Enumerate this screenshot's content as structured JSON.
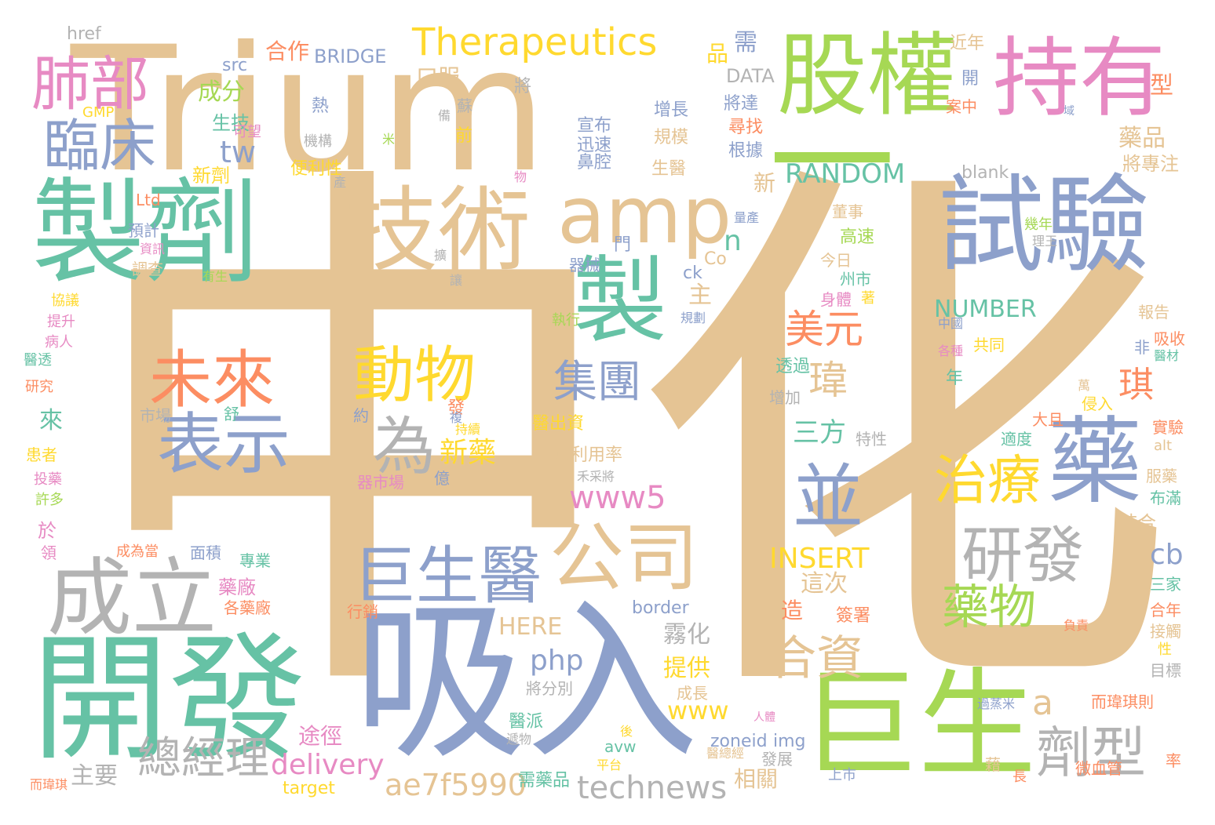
{
  "palette": {
    "tan": "#e5c494",
    "green": "#66c2a5",
    "lime": "#a6d854",
    "blue": "#8da0cb",
    "pink": "#e78ac3",
    "orange": "#fc8d62",
    "yellow": "#ffd92f",
    "gray": "#b3b3b3"
  },
  "words": [
    {
      "text": "中化",
      "color": "tan"
    },
    {
      "text": "Trium",
      "color": "tan"
    },
    {
      "text": "一",
      "color": "lime"
    },
    {
      "text": "吸入",
      "color": "blue"
    },
    {
      "text": "開發",
      "color": "green"
    },
    {
      "text": "巨生",
      "color": "lime"
    },
    {
      "text": "製劑",
      "color": "green"
    },
    {
      "text": "試驗",
      "color": "blue"
    },
    {
      "text": "技術",
      "color": "tan"
    },
    {
      "text": "股權",
      "color": "lime"
    },
    {
      "text": "持有",
      "color": "pink"
    },
    {
      "text": "amp",
      "color": "tan"
    },
    {
      "text": "製",
      "color": "green"
    },
    {
      "text": "藥",
      "color": "blue"
    },
    {
      "text": "成立",
      "color": "gray"
    },
    {
      "text": "並",
      "color": "blue"
    },
    {
      "text": "公司",
      "color": "tan"
    },
    {
      "text": "巨生醫",
      "color": "blue"
    },
    {
      "text": "未來",
      "color": "orange"
    },
    {
      "text": "表示",
      "color": "blue"
    },
    {
      "text": "動物",
      "color": "yellow"
    },
    {
      "text": "為",
      "color": "gray"
    },
    {
      "text": "肺部",
      "color": "pink"
    },
    {
      "text": "臨床",
      "color": "blue"
    },
    {
      "text": "研發",
      "color": "gray"
    },
    {
      "text": "劑型",
      "color": "gray"
    },
    {
      "text": "治療",
      "color": "yellow"
    },
    {
      "text": "藥物",
      "color": "lime"
    },
    {
      "text": "集團",
      "color": "blue"
    },
    {
      "text": "總經理",
      "color": "gray"
    },
    {
      "text": "合資",
      "color": "tan"
    },
    {
      "text": "technews",
      "color": "gray"
    },
    {
      "text": "Therapeutics",
      "color": "yellow"
    },
    {
      "text": "美元",
      "color": "orange"
    },
    {
      "text": "瑋",
      "color": "tan"
    },
    {
      "text": "琪",
      "color": "orange"
    },
    {
      "text": "www5",
      "color": "pink"
    },
    {
      "text": "ae7f5990",
      "color": "tan"
    },
    {
      "text": "delivery",
      "color": "pink"
    },
    {
      "text": "php",
      "color": "blue"
    },
    {
      "text": "RANDOM",
      "color": "green"
    },
    {
      "text": "INSERT",
      "color": "yellow"
    },
    {
      "text": "NUMBER",
      "color": "green"
    },
    {
      "text": "www",
      "color": "yellow"
    },
    {
      "text": "新藥",
      "color": "yellow"
    },
    {
      "text": "三方",
      "color": "green"
    },
    {
      "text": "霧化",
      "color": "gray"
    },
    {
      "text": "提供",
      "color": "yellow"
    },
    {
      "text": "途徑",
      "color": "pink"
    },
    {
      "text": "主要",
      "color": "gray"
    },
    {
      "text": "相關",
      "color": "tan"
    },
    {
      "text": "這次",
      "color": "tan"
    },
    {
      "text": "a",
      "color": "tan"
    },
    {
      "text": "cb",
      "color": "blue"
    },
    {
      "text": "tw",
      "color": "blue"
    },
    {
      "text": "n",
      "color": "green"
    },
    {
      "text": "HERE",
      "color": "tan"
    },
    {
      "text": "zoneid",
      "color": "blue"
    },
    {
      "text": "img",
      "color": "blue"
    },
    {
      "text": "border",
      "color": "blue"
    },
    {
      "text": "target",
      "color": "yellow"
    },
    {
      "text": "BRIDGE",
      "color": "blue"
    },
    {
      "text": "DATA",
      "color": "gray"
    },
    {
      "text": "blank",
      "color": "gray"
    },
    {
      "text": "href",
      "color": "gray"
    },
    {
      "text": "src",
      "color": "blue"
    },
    {
      "text": "GMP",
      "color": "yellow"
    },
    {
      "text": "Ltd",
      "color": "orange"
    },
    {
      "text": "Co",
      "color": "tan"
    },
    {
      "text": "ck",
      "color": "blue"
    },
    {
      "text": "alt",
      "color": "tan"
    },
    {
      "text": "avw",
      "color": "green"
    },
    {
      "text": "合作",
      "color": "orange"
    },
    {
      "text": "口服",
      "color": "tan"
    },
    {
      "text": "成分",
      "color": "lime"
    },
    {
      "text": "生技",
      "color": "green"
    },
    {
      "text": "品",
      "color": "yellow"
    },
    {
      "text": "需",
      "color": "blue"
    },
    {
      "text": "近年",
      "color": "tan"
    },
    {
      "text": "藥品",
      "color": "tan"
    },
    {
      "text": "型",
      "color": "orange"
    },
    {
      "text": "將專注",
      "color": "tan"
    },
    {
      "text": "增長",
      "color": "blue"
    },
    {
      "text": "規模",
      "color": "tan"
    },
    {
      "text": "生醫",
      "color": "tan"
    },
    {
      "text": "宣布",
      "color": "blue"
    },
    {
      "text": "迅速",
      "color": "blue"
    },
    {
      "text": "鼻腔",
      "color": "blue"
    },
    {
      "text": "尋找",
      "color": "orange"
    },
    {
      "text": "根據",
      "color": "blue"
    },
    {
      "text": "將達",
      "color": "blue"
    },
    {
      "text": "案中",
      "color": "orange"
    },
    {
      "text": "開",
      "color": "blue"
    },
    {
      "text": "新劑",
      "color": "yellow"
    },
    {
      "text": "便利性",
      "color": "yellow"
    },
    {
      "text": "機構",
      "color": "gray"
    },
    {
      "text": "可望",
      "color": "pink"
    },
    {
      "text": "熱",
      "color": "blue"
    },
    {
      "text": "前",
      "color": "yellow"
    },
    {
      "text": "新",
      "color": "tan"
    },
    {
      "text": "預計",
      "color": "blue"
    },
    {
      "text": "資訊",
      "color": "pink"
    },
    {
      "text": "調查",
      "color": "tan"
    },
    {
      "text": "協議",
      "color": "yellow"
    },
    {
      "text": "提升",
      "color": "pink"
    },
    {
      "text": "病人",
      "color": "pink"
    },
    {
      "text": "醫透",
      "color": "green"
    },
    {
      "text": "研究",
      "color": "orange"
    },
    {
      "text": "來",
      "color": "green"
    },
    {
      "text": "患者",
      "color": "yellow"
    },
    {
      "text": "投藥",
      "color": "pink"
    },
    {
      "text": "許多",
      "color": "lime"
    },
    {
      "text": "於",
      "color": "pink"
    },
    {
      "text": "領",
      "color": "pink"
    },
    {
      "text": "主",
      "color": "tan"
    },
    {
      "text": "董事",
      "color": "tan"
    },
    {
      "text": "高速",
      "color": "lime"
    },
    {
      "text": "今日",
      "color": "tan"
    },
    {
      "text": "州市",
      "color": "green"
    },
    {
      "text": "身體",
      "color": "pink"
    },
    {
      "text": "著",
      "color": "yellow"
    },
    {
      "text": "幾年",
      "color": "lime"
    },
    {
      "text": "報告",
      "color": "tan"
    },
    {
      "text": "吸收",
      "color": "orange"
    },
    {
      "text": "醫材",
      "color": "green"
    },
    {
      "text": "透過",
      "color": "green"
    },
    {
      "text": "增加",
      "color": "gray"
    },
    {
      "text": "共同",
      "color": "yellow"
    },
    {
      "text": "各種",
      "color": "pink"
    },
    {
      "text": "年",
      "color": "green"
    },
    {
      "text": "非",
      "color": "blue"
    },
    {
      "text": "大且",
      "color": "orange"
    },
    {
      "text": "侵入",
      "color": "yellow"
    },
    {
      "text": "萬",
      "color": "tan"
    },
    {
      "text": "適度",
      "color": "green"
    },
    {
      "text": "服藥",
      "color": "tan"
    },
    {
      "text": "布滿",
      "color": "green"
    },
    {
      "text": "結合",
      "color": "tan"
    },
    {
      "text": "三家",
      "color": "green"
    },
    {
      "text": "合年",
      "color": "orange"
    },
    {
      "text": "接觸",
      "color": "tan"
    },
    {
      "text": "目標",
      "color": "gray"
    },
    {
      "text": "性",
      "color": "yellow"
    },
    {
      "text": "而瑋琪則",
      "color": "orange"
    },
    {
      "text": "率",
      "color": "orange"
    },
    {
      "text": "藉",
      "color": "tan"
    },
    {
      "text": "長",
      "color": "orange"
    },
    {
      "text": "微血管",
      "color": "orange"
    },
    {
      "text": "上市",
      "color": "blue"
    },
    {
      "text": "發展",
      "color": "gray"
    },
    {
      "text": "醫總經",
      "color": "tan"
    },
    {
      "text": "平台",
      "color": "yellow"
    },
    {
      "text": "後",
      "color": "yellow"
    },
    {
      "text": "人體",
      "color": "pink"
    },
    {
      "text": "成長",
      "color": "tan"
    },
    {
      "text": "將分別",
      "color": "gray"
    },
    {
      "text": "醫派",
      "color": "green"
    },
    {
      "text": "藥廠",
      "color": "pink"
    },
    {
      "text": "各藥廠",
      "color": "orange"
    },
    {
      "text": "專業",
      "color": "green"
    },
    {
      "text": "面積",
      "color": "blue"
    },
    {
      "text": "造",
      "color": "orange"
    },
    {
      "text": "簽署",
      "color": "orange"
    },
    {
      "text": "可利用率",
      "color": "tan"
    },
    {
      "text": "醫出資",
      "color": "yellow"
    },
    {
      "text": "約",
      "color": "blue"
    },
    {
      "text": "發",
      "color": "orange"
    },
    {
      "text": "持續",
      "color": "yellow"
    },
    {
      "text": "億",
      "color": "blue"
    },
    {
      "text": "器市場",
      "color": "pink"
    },
    {
      "text": "舒",
      "color": "green"
    },
    {
      "text": "市場",
      "color": "gray"
    },
    {
      "text": "需藥品",
      "color": "green"
    },
    {
      "text": "行銷",
      "color": "orange"
    },
    {
      "text": "負責",
      "color": "orange"
    },
    {
      "text": "域",
      "color": "blue"
    },
    {
      "text": "實驗",
      "color": "orange"
    },
    {
      "text": "而瑋琪",
      "color": "orange"
    },
    {
      "text": "成為當",
      "color": "orange"
    },
    {
      "text": "門",
      "color": "blue"
    },
    {
      "text": "器械",
      "color": "blue"
    },
    {
      "text": "量產",
      "color": "blue"
    },
    {
      "text": "物",
      "color": "pink"
    },
    {
      "text": "有生",
      "color": "lime"
    },
    {
      "text": "擴",
      "color": "gray"
    },
    {
      "text": "讓",
      "color": "gray"
    },
    {
      "text": "執行",
      "color": "lime"
    },
    {
      "text": "複",
      "color": "blue"
    },
    {
      "text": "特性",
      "color": "gray"
    },
    {
      "text": "中國",
      "color": "blue"
    },
    {
      "text": "規劃",
      "color": "blue"
    },
    {
      "text": "蘇",
      "color": "gray"
    },
    {
      "text": "備",
      "color": "gray"
    },
    {
      "text": "將",
      "color": "gray"
    },
    {
      "text": "米",
      "color": "lime"
    },
    {
      "text": "產",
      "color": "gray"
    },
    {
      "text": "理王",
      "color": "gray"
    },
    {
      "text": "過蒸米",
      "color": "blue"
    },
    {
      "text": "遞物",
      "color": "gray"
    },
    {
      "text": "禾采將",
      "color": "gray"
    }
  ]
}
